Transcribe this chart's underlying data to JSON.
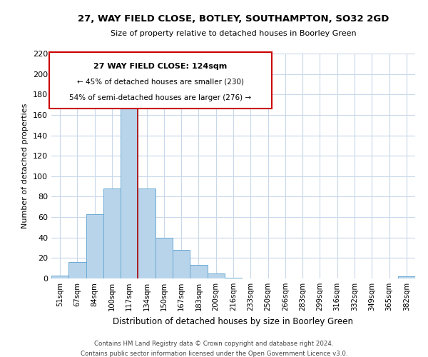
{
  "title": "27, WAY FIELD CLOSE, BOTLEY, SOUTHAMPTON, SO32 2GD",
  "subtitle": "Size of property relative to detached houses in Boorley Green",
  "xlabel": "Distribution of detached houses by size in Boorley Green",
  "ylabel": "Number of detached properties",
  "bar_color": "#b8d4ea",
  "bar_edge_color": "#6aaad4",
  "categories": [
    "51sqm",
    "67sqm",
    "84sqm",
    "100sqm",
    "117sqm",
    "134sqm",
    "150sqm",
    "167sqm",
    "183sqm",
    "200sqm",
    "216sqm",
    "233sqm",
    "250sqm",
    "266sqm",
    "283sqm",
    "299sqm",
    "316sqm",
    "332sqm",
    "349sqm",
    "365sqm",
    "382sqm"
  ],
  "values": [
    3,
    16,
    63,
    88,
    173,
    88,
    40,
    28,
    13,
    5,
    1,
    0,
    0,
    0,
    0,
    0,
    0,
    0,
    0,
    0,
    2
  ],
  "ylim": [
    0,
    220
  ],
  "yticks": [
    0,
    20,
    40,
    60,
    80,
    100,
    120,
    140,
    160,
    180,
    200,
    220
  ],
  "vline_x_idx": 4.5,
  "vline_color": "#aa0000",
  "annotation_title": "27 WAY FIELD CLOSE: 124sqm",
  "annotation_line1": "← 45% of detached houses are smaller (230)",
  "annotation_line2": "54% of semi-detached houses are larger (276) →",
  "annotation_box_color": "#ffffff",
  "annotation_box_edge": "#cc0000",
  "footer1": "Contains HM Land Registry data © Crown copyright and database right 2024.",
  "footer2": "Contains public sector information licensed under the Open Government Licence v3.0.",
  "background_color": "#ffffff",
  "grid_color": "#c8d8ea"
}
